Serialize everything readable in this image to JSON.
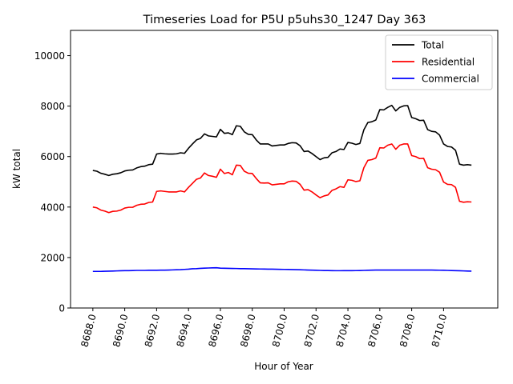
{
  "chart_data": {
    "type": "line",
    "title": "Timeseries Load for P5U p5uhs30_1247  Day 363",
    "xlabel": "Hour of Year",
    "ylabel": "kW total",
    "xlim": [
      8686.6,
      8713.4
    ],
    "ylim": [
      0,
      11000
    ],
    "xticks": [
      8688,
      8690,
      8692,
      8694,
      8696,
      8698,
      8700,
      8702,
      8704,
      8706,
      8708,
      8710
    ],
    "xtick_labels": [
      "8688.0",
      "8690.0",
      "8692.0",
      "8694.0",
      "8696.0",
      "8698.0",
      "8700.0",
      "8702.0",
      "8704.0",
      "8706.0",
      "8708.0",
      "8710.0"
    ],
    "yticks": [
      0,
      2000,
      4000,
      6000,
      8000,
      10000
    ],
    "ytick_labels": [
      "0",
      "2000",
      "4000",
      "6000",
      "8000",
      "10000"
    ],
    "legend_position": "top-right",
    "x": [
      8688.0,
      8688.25,
      8688.5,
      8688.75,
      8689.0,
      8689.25,
      8689.5,
      8689.75,
      8690.0,
      8690.25,
      8690.5,
      8690.75,
      8691.0,
      8691.25,
      8691.5,
      8691.75,
      8692.0,
      8692.25,
      8692.5,
      8692.75,
      8693.0,
      8693.25,
      8693.5,
      8693.75,
      8694.0,
      8694.25,
      8694.5,
      8694.75,
      8695.0,
      8695.25,
      8695.5,
      8695.75,
      8696.0,
      8696.25,
      8696.5,
      8696.75,
      8697.0,
      8697.25,
      8697.5,
      8697.75,
      8698.0,
      8698.25,
      8698.5,
      8698.75,
      8699.0,
      8699.25,
      8699.5,
      8699.75,
      8700.0,
      8700.25,
      8700.5,
      8700.75,
      8701.0,
      8701.25,
      8701.5,
      8701.75,
      8702.0,
      8702.25,
      8702.5,
      8702.75,
      8703.0,
      8703.25,
      8703.5,
      8703.75,
      8704.0,
      8704.25,
      8704.5,
      8704.75,
      8705.0,
      8705.25,
      8705.5,
      8705.75,
      8706.0,
      8706.25,
      8706.5,
      8706.75,
      8707.0,
      8707.25,
      8707.5,
      8707.75,
      8708.0,
      8708.25,
      8708.5,
      8708.75,
      8709.0,
      8709.25,
      8709.5,
      8709.75,
      8710.0,
      8710.25,
      8710.5,
      8710.75,
      8711.0,
      8711.25,
      8711.5,
      8711.75
    ],
    "series": [
      {
        "name": "Total",
        "color": "#000000",
        "values": [
          5450,
          5420,
          5340,
          5300,
          5250,
          5300,
          5320,
          5360,
          5430,
          5460,
          5470,
          5550,
          5600,
          5620,
          5680,
          5700,
          6100,
          6130,
          6110,
          6100,
          6100,
          6110,
          6150,
          6130,
          6330,
          6500,
          6660,
          6720,
          6900,
          6820,
          6800,
          6780,
          7080,
          6920,
          6940,
          6870,
          7220,
          7200,
          6980,
          6880,
          6870,
          6660,
          6500,
          6500,
          6500,
          6420,
          6440,
          6460,
          6460,
          6520,
          6550,
          6540,
          6430,
          6200,
          6220,
          6120,
          6000,
          5880,
          5950,
          5970,
          6150,
          6200,
          6300,
          6280,
          6560,
          6530,
          6480,
          6520,
          7060,
          7350,
          7380,
          7450,
          7860,
          7850,
          7950,
          8030,
          7810,
          7950,
          8010,
          8020,
          7550,
          7500,
          7430,
          7440,
          7070,
          7000,
          6980,
          6850,
          6500,
          6400,
          6380,
          6250,
          5700,
          5660,
          5680,
          5660
        ]
      },
      {
        "name": "Residential",
        "color": "#ff0000",
        "values": [
          4000,
          3970,
          3880,
          3840,
          3780,
          3830,
          3840,
          3880,
          3960,
          3990,
          3990,
          4070,
          4110,
          4120,
          4180,
          4200,
          4620,
          4640,
          4620,
          4600,
          4600,
          4600,
          4640,
          4600,
          4780,
          4940,
          5100,
          5150,
          5350,
          5250,
          5220,
          5180,
          5500,
          5330,
          5370,
          5280,
          5660,
          5650,
          5420,
          5340,
          5330,
          5130,
          4960,
          4950,
          4960,
          4880,
          4900,
          4920,
          4920,
          5000,
          5030,
          5020,
          4900,
          4670,
          4690,
          4600,
          4480,
          4370,
          4440,
          4480,
          4660,
          4720,
          4810,
          4780,
          5080,
          5060,
          5010,
          5040,
          5560,
          5850,
          5880,
          5940,
          6350,
          6340,
          6450,
          6500,
          6290,
          6450,
          6500,
          6500,
          6040,
          6000,
          5920,
          5930,
          5560,
          5500,
          5480,
          5380,
          4990,
          4900,
          4890,
          4780,
          4230,
          4190,
          4210,
          4200
        ]
      },
      {
        "name": "Commercial",
        "color": "#0000ff",
        "values": [
          1450,
          1450,
          1450,
          1455,
          1460,
          1465,
          1470,
          1475,
          1480,
          1480,
          1485,
          1490,
          1490,
          1490,
          1495,
          1495,
          1495,
          1500,
          1500,
          1505,
          1510,
          1515,
          1520,
          1530,
          1540,
          1555,
          1560,
          1570,
          1580,
          1585,
          1590,
          1595,
          1580,
          1575,
          1570,
          1568,
          1565,
          1560,
          1558,
          1555,
          1550,
          1548,
          1545,
          1543,
          1540,
          1538,
          1535,
          1533,
          1530,
          1528,
          1525,
          1520,
          1515,
          1510,
          1505,
          1500,
          1495,
          1490,
          1485,
          1485,
          1480,
          1478,
          1478,
          1480,
          1480,
          1480,
          1482,
          1485,
          1490,
          1495,
          1500,
          1505,
          1505,
          1505,
          1505,
          1505,
          1505,
          1505,
          1505,
          1505,
          1505,
          1505,
          1505,
          1505,
          1505,
          1503,
          1500,
          1498,
          1495,
          1490,
          1485,
          1480,
          1475,
          1470,
          1465,
          1460
        ]
      }
    ]
  }
}
